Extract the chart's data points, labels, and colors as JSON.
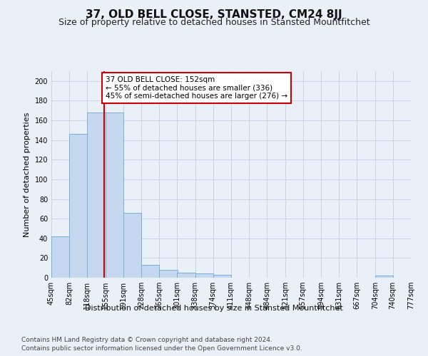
{
  "title": "37, OLD BELL CLOSE, STANSTED, CM24 8JJ",
  "subtitle": "Size of property relative to detached houses in Stansted Mountfitchet",
  "xlabel": "Distribution of detached houses by size in Stansted Mountfitchet",
  "ylabel": "Number of detached properties",
  "footnote1": "Contains HM Land Registry data © Crown copyright and database right 2024.",
  "footnote2": "Contains public sector information licensed under the Open Government Licence v3.0.",
  "annotation_line1": "37 OLD BELL CLOSE: 152sqm",
  "annotation_line2": "← 55% of detached houses are smaller (336)",
  "annotation_line3": "45% of semi-detached houses are larger (276) →",
  "property_size": 152,
  "bar_edges": [
    45,
    82,
    118,
    155,
    191,
    228,
    265,
    301,
    338,
    374,
    411,
    448,
    484,
    521,
    557,
    594,
    631,
    667,
    704,
    740,
    777
  ],
  "bar_heights": [
    42,
    146,
    168,
    168,
    66,
    13,
    8,
    5,
    4,
    3,
    0,
    0,
    0,
    0,
    0,
    0,
    0,
    0,
    2,
    0,
    0
  ],
  "bar_color": "#c5d8f0",
  "bar_edgecolor": "#7aaed6",
  "vline_color": "#cc0000",
  "vline_x": 152,
  "annotation_box_edgecolor": "#cc0000",
  "annotation_box_facecolor": "#ffffff",
  "ylim": [
    0,
    210
  ],
  "yticks": [
    0,
    20,
    40,
    60,
    80,
    100,
    120,
    140,
    160,
    180,
    200
  ],
  "grid_color": "#c8d4e8",
  "background_color": "#eaf0f8",
  "title_fontsize": 11,
  "subtitle_fontsize": 9,
  "xlabel_fontsize": 8,
  "ylabel_fontsize": 8,
  "tick_fontsize": 7,
  "footnote_fontsize": 6.5,
  "annotation_fontsize": 7.5
}
